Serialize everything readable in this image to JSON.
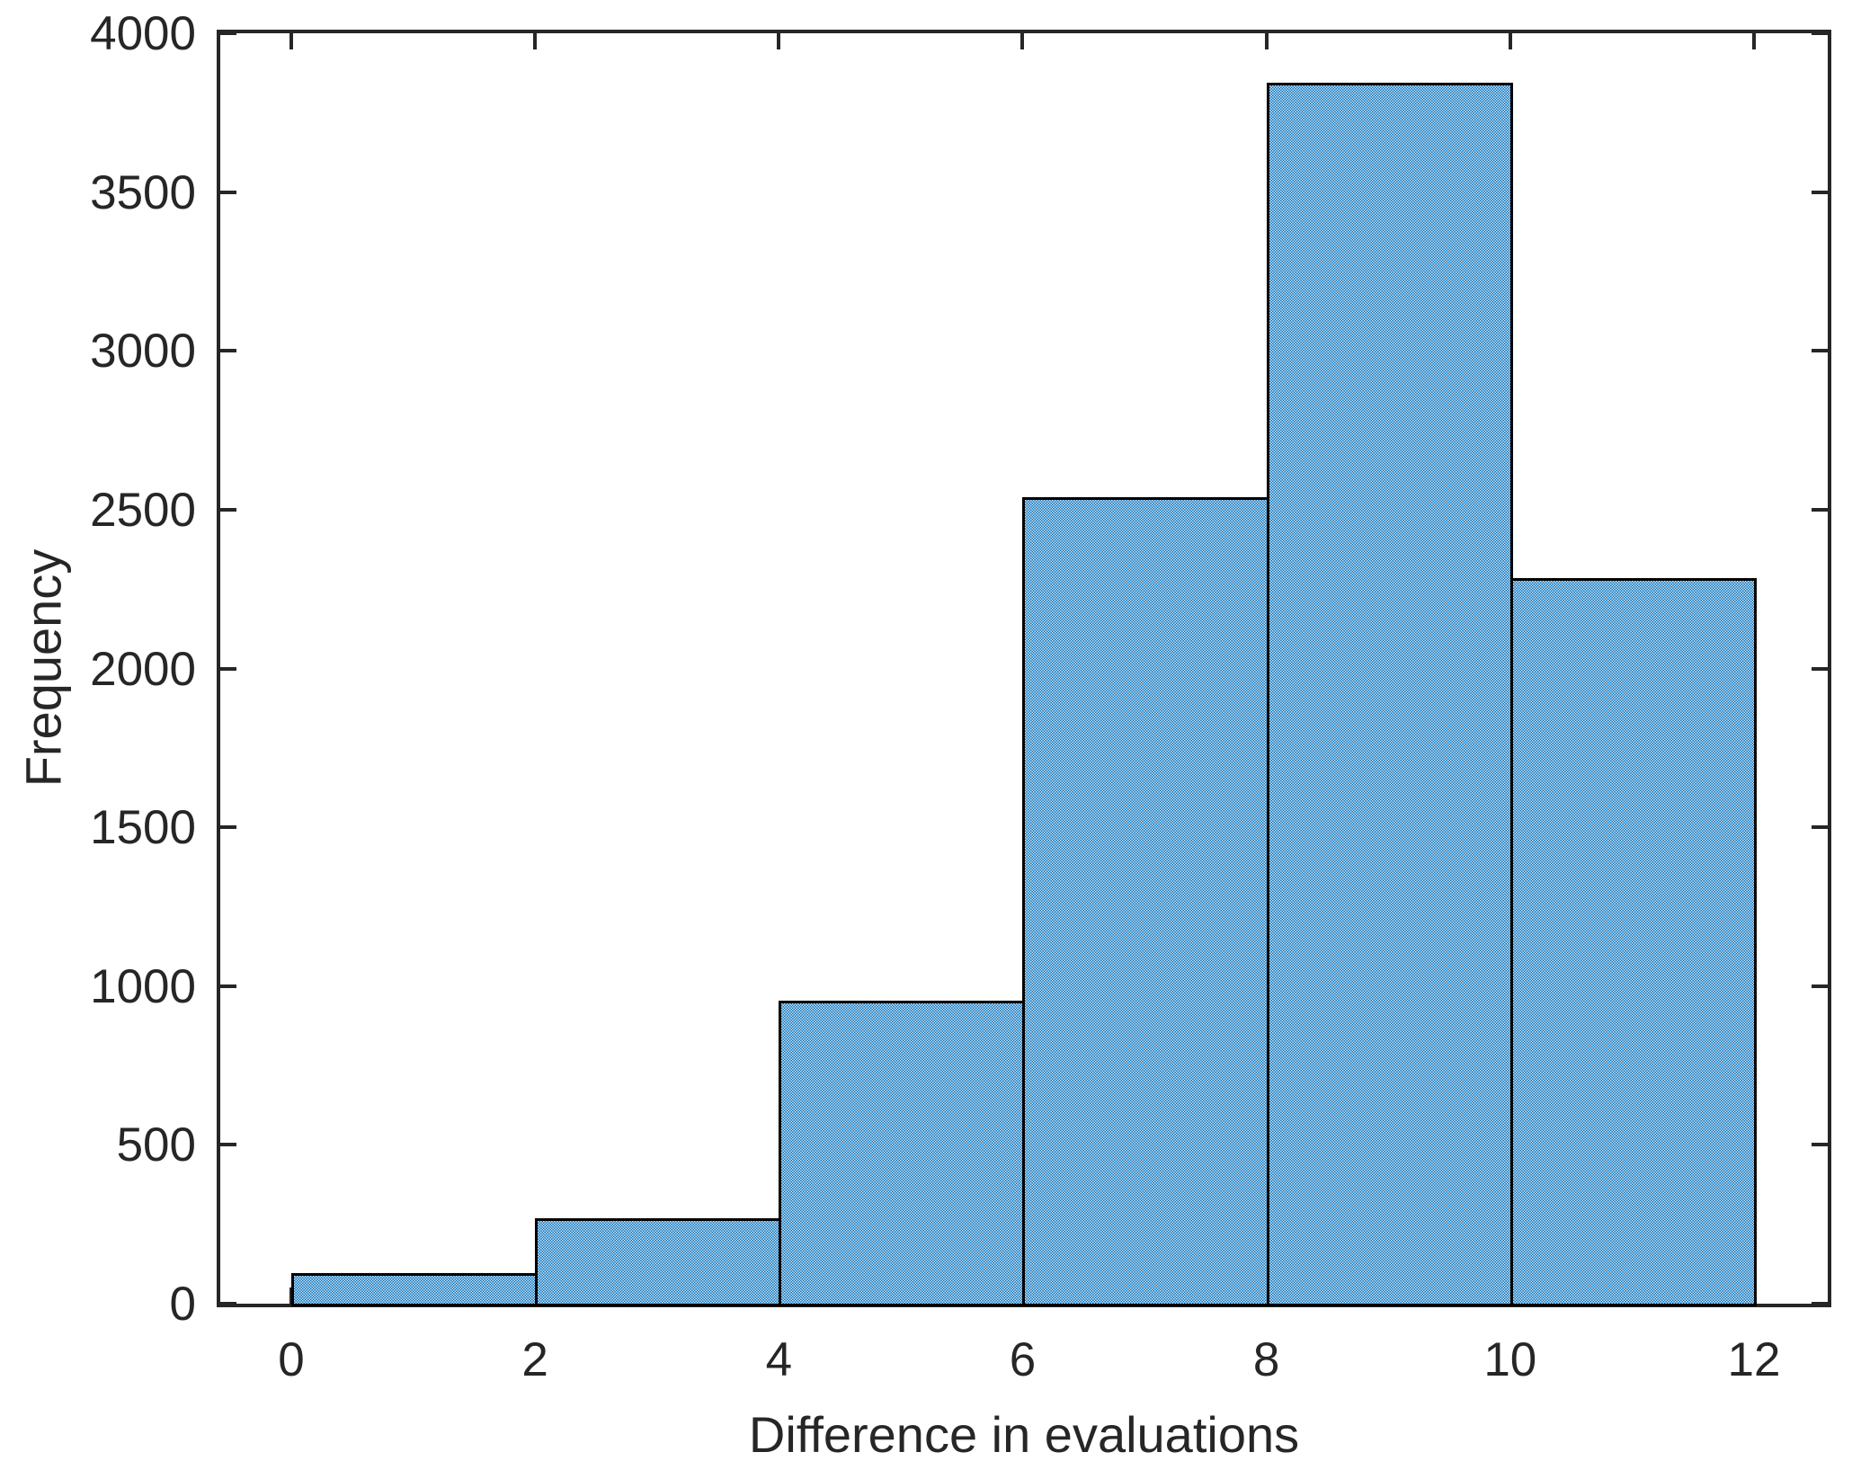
{
  "figure": {
    "background": "#ffffff",
    "title": ""
  },
  "chart_data": {
    "type": "bar",
    "kind": "histogram",
    "title": "",
    "xlabel": "Difference in evaluations",
    "ylabel": "Frequency",
    "bin_edges": [
      0,
      2,
      4,
      6,
      8,
      10,
      12
    ],
    "values": [
      95,
      270,
      955,
      2540,
      3845,
      2285
    ],
    "xticks": [
      0,
      2,
      4,
      6,
      8,
      10,
      12
    ],
    "xtick_labels": [
      "0",
      "2",
      "4",
      "6",
      "8",
      "10",
      "12"
    ],
    "yticks": [
      0,
      500,
      1000,
      1500,
      2000,
      2500,
      3000,
      3500,
      4000
    ],
    "ytick_labels": [
      "0",
      "500",
      "1000",
      "1500",
      "2000",
      "2500",
      "3000",
      "3500",
      "4000"
    ],
    "xlim": [
      -0.58,
      12.6
    ],
    "ylim": [
      0,
      4000
    ],
    "grid": false,
    "legend": null,
    "colors": {
      "bar_fill": "#0072BD",
      "bar_fill_rendered": "#66aae0",
      "bar_edge": "#000000",
      "axis": "#262626",
      "text": "#262626",
      "plot_background": "#ffffff"
    }
  }
}
